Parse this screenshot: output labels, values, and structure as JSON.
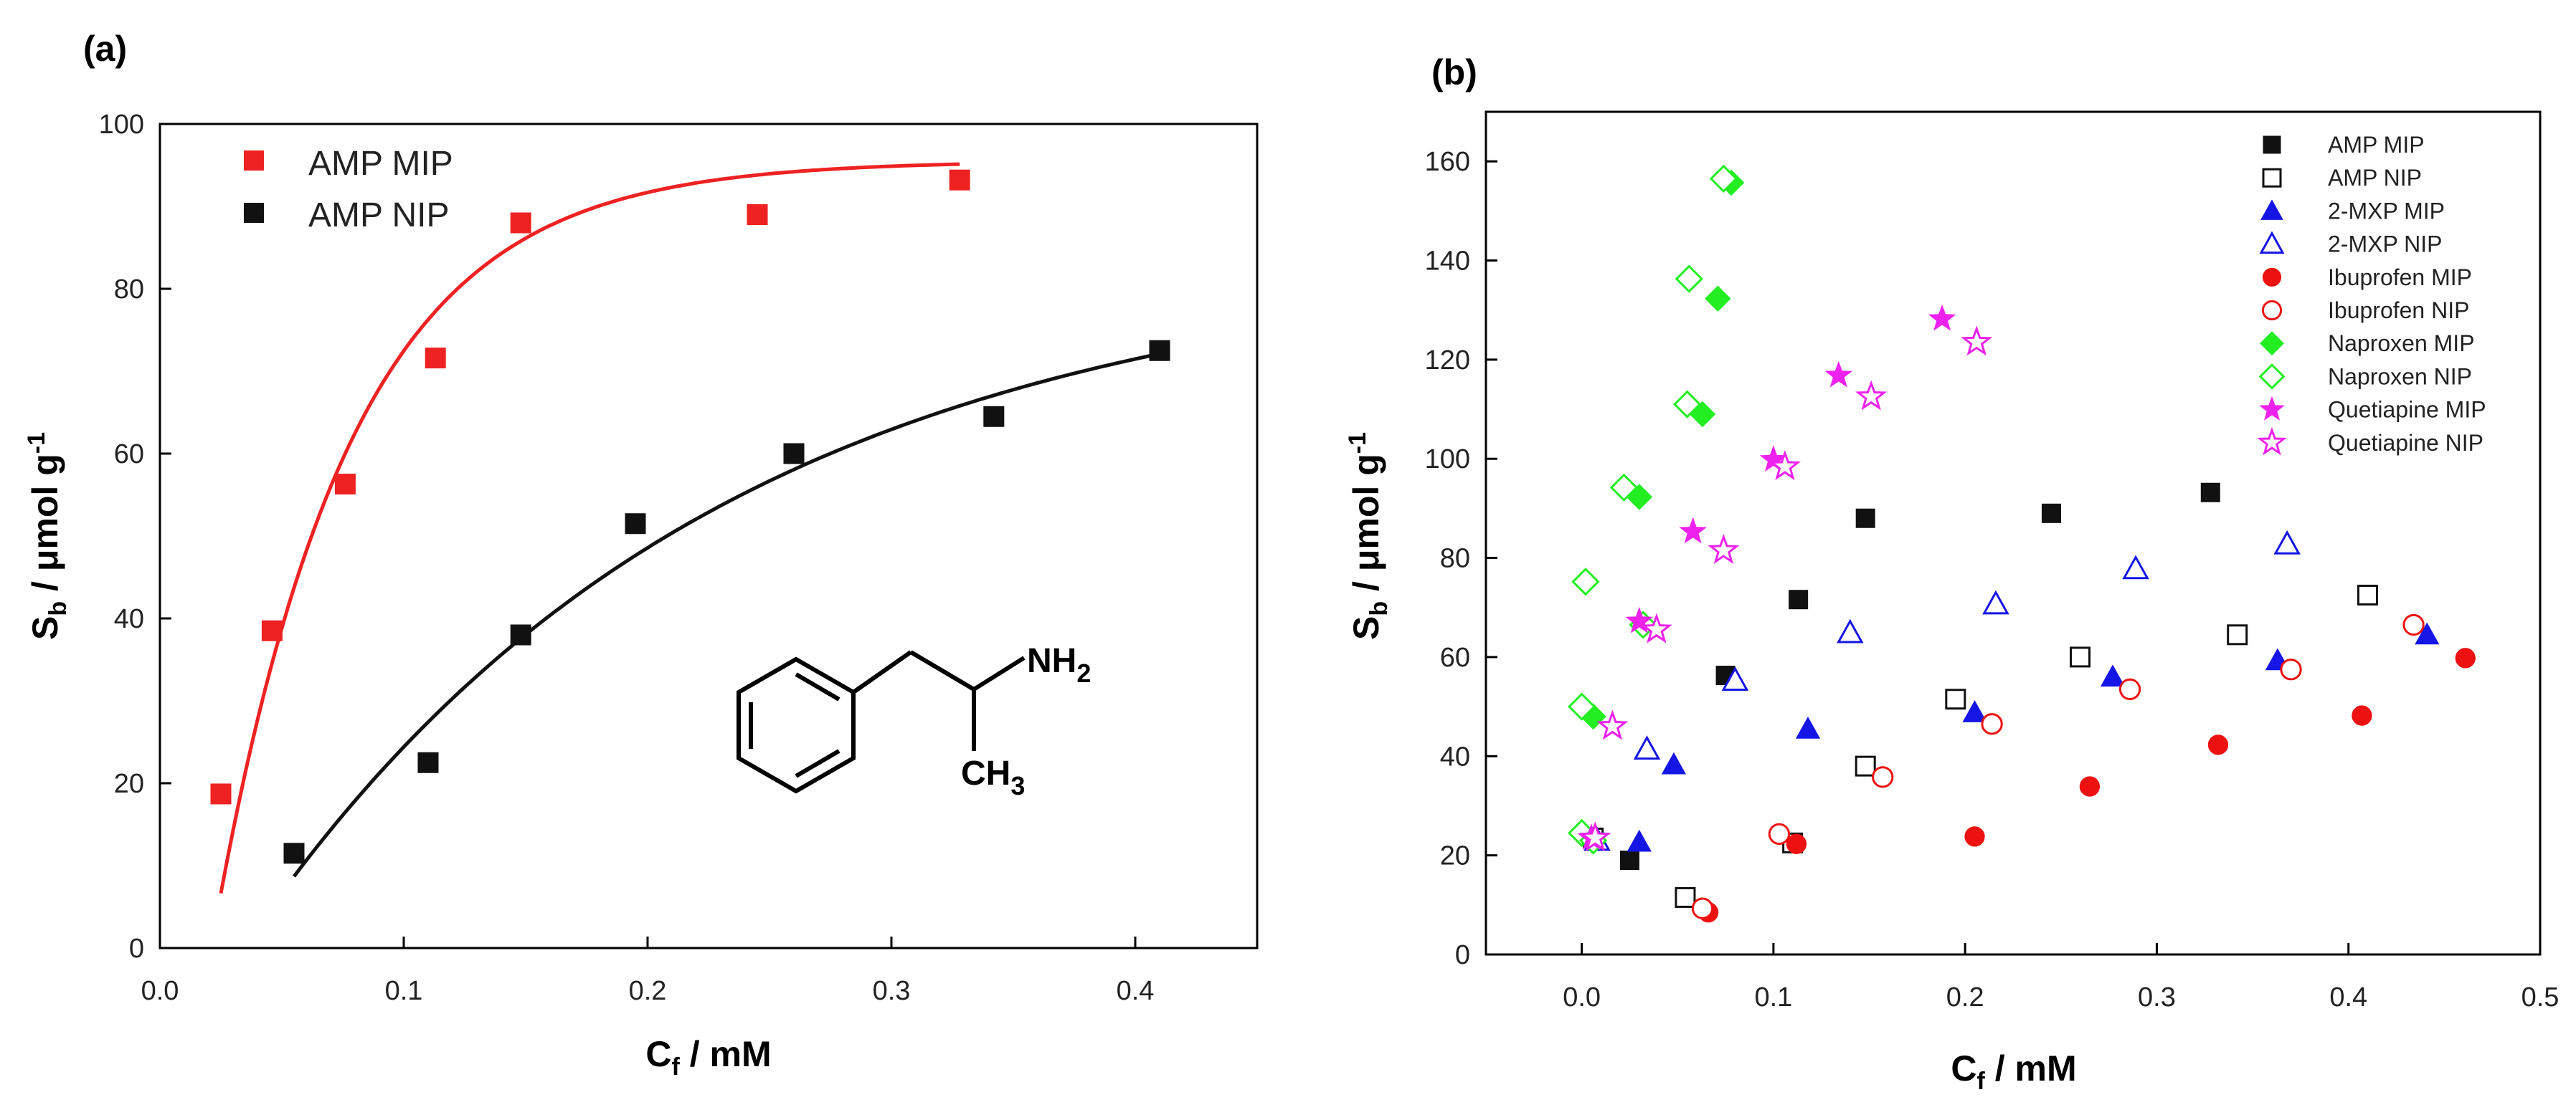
{
  "chart_data": [
    {
      "panel": "(a)",
      "type": "scatter",
      "xlabel": "C_f / mM",
      "ylabel": "S_b / μmol g^-1",
      "xlabel_main": "C",
      "xlabel_sub": "f",
      "xlabel_rest": " / mM",
      "ylabel_main": "S",
      "ylabel_sub": "b",
      "ylabel_rest": " / μmol g",
      "ylabel_sup": "-1",
      "xlim": [
        0.0,
        0.45
      ],
      "ylim": [
        0,
        100
      ],
      "xticks": [
        "0.0",
        "0.1",
        "0.2",
        "0.3",
        "0.4"
      ],
      "xtick_values": [
        0.0,
        0.1,
        0.2,
        0.3,
        0.4
      ],
      "yticks": [
        "0",
        "20",
        "40",
        "60",
        "80",
        "100"
      ],
      "ytick_values": [
        0,
        20,
        40,
        60,
        80,
        100
      ],
      "legend_position": "top-left",
      "structure_labels": {
        "amine": "NH2",
        "methyl": "CH3"
      },
      "series": [
        {
          "name": "AMP MIP",
          "color": "#ee2222",
          "marker": "square-filled",
          "x": [
            0.025,
            0.046,
            0.076,
            0.113,
            0.148,
            0.245,
            0.328
          ],
          "y": [
            18.7,
            38.5,
            56.3,
            71.6,
            88.0,
            89.0,
            93.2
          ],
          "fit": {
            "model": "langmuir",
            "qmax": 95.5,
            "k": 18.0,
            "x0": 0.021,
            "xrange": [
              0.025,
              0.328
            ]
          }
        },
        {
          "name": "AMP NIP",
          "color": "#111111",
          "marker": "square-filled",
          "x": [
            0.055,
            0.11,
            0.148,
            0.195,
            0.26,
            0.342,
            0.41
          ],
          "y": [
            11.5,
            22.5,
            38.0,
            51.5,
            60.0,
            64.5,
            72.5
          ],
          "fit": {
            "model": "langmuir",
            "qmax": 84.0,
            "k": 5.2,
            "x0": 0.034,
            "xrange": [
              0.055,
              0.41
            ]
          }
        }
      ]
    },
    {
      "panel": "(b)",
      "type": "scatter",
      "xlabel": "C_f / mM",
      "ylabel": "S_b / μmol g^-1",
      "xlabel_main": "C",
      "xlabel_sub": "f",
      "xlabel_rest": " / mM",
      "ylabel_main": "S",
      "ylabel_sub": "b",
      "ylabel_rest": " / μmol g",
      "ylabel_sup": "-1",
      "xlim": [
        -0.05,
        0.5
      ],
      "ylim": [
        0,
        170
      ],
      "xticks": [
        "0.0",
        "0.1",
        "0.2",
        "0.3",
        "0.4",
        "0.5"
      ],
      "xtick_values": [
        0.0,
        0.1,
        0.2,
        0.3,
        0.4,
        0.5
      ],
      "yticks": [
        "0",
        "20",
        "40",
        "60",
        "80",
        "100",
        "120",
        "140",
        "160"
      ],
      "ytick_values": [
        0,
        20,
        40,
        60,
        80,
        100,
        120,
        140,
        160
      ],
      "legend_position": "top-right",
      "series": [
        {
          "name": "AMP MIP",
          "color": "#111111",
          "marker": "square-filled",
          "x": [
            0.025,
            0.075,
            0.113,
            0.148,
            0.245,
            0.328
          ],
          "y": [
            19.0,
            56.3,
            71.6,
            88.0,
            89.0,
            93.2
          ]
        },
        {
          "name": "AMP NIP",
          "color": "#111111",
          "marker": "square-open",
          "x": [
            0.006,
            0.054,
            0.11,
            0.148,
            0.195,
            0.26,
            0.342,
            0.41
          ],
          "y": [
            23.5,
            11.5,
            22.5,
            38.0,
            51.5,
            60.0,
            64.5,
            72.5
          ]
        },
        {
          "name": "2-MXP MIP",
          "color": "#1515e6",
          "marker": "triangle-filled",
          "x": [
            0.03,
            0.048,
            0.118,
            0.205,
            0.277,
            0.363,
            0.441
          ],
          "y": [
            22.7,
            38.3,
            45.5,
            48.8,
            56.0,
            59.3,
            64.5
          ]
        },
        {
          "name": "2-MXP NIP",
          "color": "#1515e6",
          "marker": "triangle-open",
          "x": [
            0.008,
            0.034,
            0.08,
            0.14,
            0.216,
            0.289,
            0.368
          ],
          "y": [
            23.0,
            41.4,
            55.3,
            64.9,
            70.7,
            77.8,
            82.8
          ]
        },
        {
          "name": "Ibuprofen MIP",
          "color": "#ee1111",
          "marker": "circle-filled",
          "x": [
            0.066,
            0.112,
            0.205,
            0.265,
            0.332,
            0.407,
            0.461
          ],
          "y": [
            8.5,
            22.3,
            23.8,
            33.9,
            42.3,
            48.2,
            59.8
          ]
        },
        {
          "name": "Ibuprofen NIP",
          "color": "#ee1111",
          "marker": "circle-open",
          "x": [
            0.063,
            0.103,
            0.157,
            0.214,
            0.286,
            0.37,
            0.434
          ],
          "y": [
            9.3,
            24.3,
            35.8,
            46.5,
            53.5,
            57.5,
            66.5
          ]
        },
        {
          "name": "Naproxen MIP",
          "color": "#22ee22",
          "marker": "diamond-filled",
          "x": [
            0.006,
            0.03,
            0.063,
            0.071,
            0.078
          ],
          "y": [
            48.0,
            92.3,
            109.0,
            132.3,
            155.7
          ]
        },
        {
          "name": "Naproxen NIP",
          "color": "#22ee22",
          "marker": "diamond-open",
          "x": [
            0.0,
            0.0,
            0.002,
            0.006,
            0.022,
            0.032,
            0.055,
            0.056,
            0.074
          ],
          "y": [
            24.5,
            50.0,
            75.2,
            23.0,
            94.2,
            66.5,
            111.0,
            136.3,
            156.5
          ]
        },
        {
          "name": "Quetiapine MIP",
          "color": "#ee22ee",
          "marker": "star-filled",
          "x": [
            0.005,
            0.03,
            0.058,
            0.1,
            0.134,
            0.188
          ],
          "y": [
            23.5,
            67.2,
            85.3,
            99.8,
            116.8,
            128.2
          ]
        },
        {
          "name": "Quetiapine NIP",
          "color": "#ee22ee",
          "marker": "star-open",
          "x": [
            0.007,
            0.016,
            0.039,
            0.074,
            0.106,
            0.151,
            0.206
          ],
          "y": [
            23.5,
            46.0,
            65.5,
            81.5,
            98.4,
            112.5,
            123.5
          ]
        }
      ]
    }
  ]
}
